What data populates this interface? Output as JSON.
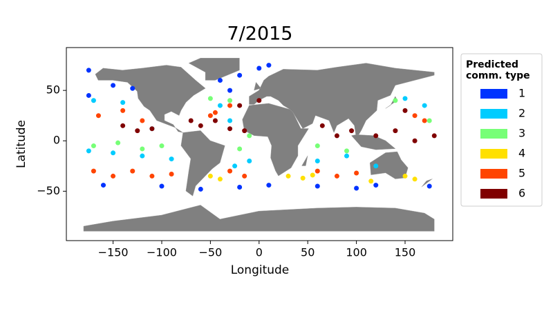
{
  "chart_data": {
    "type": "scatter",
    "title": "7/2015",
    "x_label": "Longitude",
    "y_label": "Latitude",
    "xlim": [
      -198,
      199
    ],
    "ylim": [
      -99,
      92.5
    ],
    "xticks": [
      {
        "value": -150,
        "label": "−150"
      },
      {
        "value": -100,
        "label": "−100"
      },
      {
        "value": -50,
        "label": "−50"
      },
      0,
      50,
      100,
      150
    ],
    "yticks": [
      {
        "value": -50,
        "label": "−50"
      },
      0,
      50
    ],
    "legend_title": [
      "Predicted",
      "comm. type"
    ],
    "legend_position": "outside right",
    "series": [
      {
        "name": "1",
        "color": "#0033ff",
        "x": [
          -175,
          -150,
          -130,
          -175,
          -40,
          -20,
          0,
          10,
          -30,
          -160,
          -100,
          -20,
          60,
          120,
          175,
          -60,
          10,
          100
        ],
        "y": [
          70,
          55,
          52,
          45,
          60,
          65,
          72,
          75,
          50,
          -44,
          -45,
          -46,
          -45,
          -44,
          -45,
          -48,
          -44,
          -47
        ]
      },
      {
        "name": "2",
        "color": "#00ccff",
        "x": [
          -170,
          -140,
          -110,
          -175,
          -150,
          -120,
          -90,
          -25,
          -40,
          60,
          90,
          120,
          170,
          150,
          -30,
          -10
        ],
        "y": [
          40,
          38,
          12,
          -10,
          -12,
          -15,
          -18,
          -25,
          35,
          -20,
          -15,
          -25,
          35,
          42,
          20,
          -20
        ]
      },
      {
        "name": "3",
        "color": "#77ff77",
        "x": [
          -170,
          -145,
          -120,
          -100,
          -20,
          -10,
          60,
          90,
          140,
          175,
          -30,
          -50
        ],
        "y": [
          -5,
          -2,
          -8,
          -5,
          -8,
          5,
          -5,
          -10,
          40,
          20,
          40,
          42
        ]
      },
      {
        "name": "4",
        "color": "#ffe000",
        "x": [
          -50,
          -40,
          30,
          45,
          55,
          150,
          160,
          115
        ],
        "y": [
          -35,
          -38,
          -35,
          -37,
          -34,
          -35,
          -38,
          -40
        ]
      },
      {
        "name": "5",
        "color": "#ff4400",
        "x": [
          -170,
          -150,
          -130,
          -110,
          -90,
          -165,
          -140,
          -120,
          -30,
          -15,
          -45,
          -50,
          -30,
          60,
          80,
          100,
          170,
          160
        ],
        "y": [
          -30,
          -35,
          -30,
          -35,
          -33,
          25,
          30,
          20,
          -30,
          -35,
          28,
          25,
          35,
          -30,
          -35,
          -32,
          20,
          25
        ]
      },
      {
        "name": "6",
        "color": "#800000",
        "x": [
          -140,
          -125,
          -110,
          -60,
          -45,
          -30,
          -15,
          -20,
          -70,
          65,
          80,
          95,
          120,
          140,
          160,
          180,
          150,
          0
        ],
        "y": [
          15,
          10,
          12,
          15,
          20,
          12,
          10,
          35,
          20,
          15,
          5,
          10,
          5,
          10,
          0,
          5,
          30,
          40
        ]
      }
    ]
  }
}
